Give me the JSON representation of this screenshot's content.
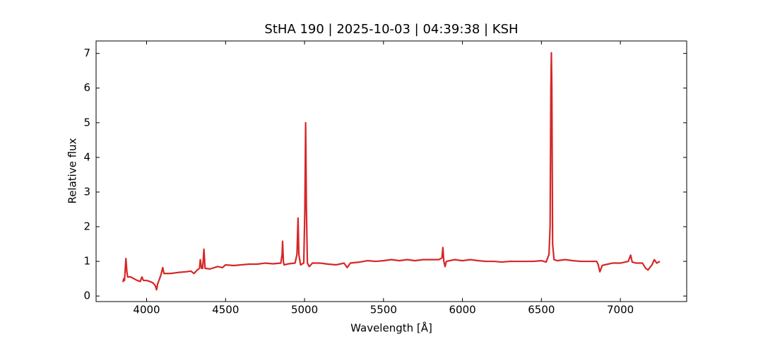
{
  "chart_data": {
    "type": "line",
    "title": "StHA 190 | 2025-10-03 | 04:39:38 | KSH",
    "x_label": "Wavelength [Å]",
    "y_label": "Relative flux",
    "xlim": [
      3680,
      7420
    ],
    "ylim": [
      -0.16,
      7.36
    ],
    "xticks": [
      4000,
      4500,
      5000,
      5500,
      6000,
      6500,
      7000
    ],
    "yticks": [
      0,
      1,
      2,
      3,
      4,
      5,
      6,
      7
    ],
    "grid": false,
    "series": [
      {
        "color": "#d62728",
        "x": [
          3850,
          3855,
          3860,
          3869,
          3875,
          3880,
          3900,
          3920,
          3940,
          3960,
          3970,
          3980,
          4000,
          4020,
          4040,
          4055,
          4063,
          4070,
          4090,
          4102,
          4110,
          4150,
          4200,
          4250,
          4280,
          4300,
          4320,
          4335,
          4340,
          4348,
          4355,
          4363,
          4370,
          4400,
          4450,
          4480,
          4500,
          4550,
          4600,
          4650,
          4700,
          4750,
          4800,
          4850,
          4858,
          4861,
          4866,
          4870,
          4900,
          4940,
          4952,
          4959,
          4964,
          4975,
          4995,
          5002,
          5007,
          5012,
          5018,
          5030,
          5050,
          5100,
          5150,
          5200,
          5250,
          5270,
          5290,
          5350,
          5400,
          5450,
          5500,
          5550,
          5600,
          5650,
          5700,
          5750,
          5800,
          5850,
          5870,
          5876,
          5882,
          5890,
          5898,
          5950,
          6000,
          6050,
          6100,
          6150,
          6200,
          6250,
          6300,
          6350,
          6400,
          6450,
          6500,
          6530,
          6548,
          6555,
          6560,
          6563,
          6566,
          6571,
          6580,
          6600,
          6650,
          6700,
          6750,
          6800,
          6850,
          6860,
          6870,
          6885,
          6900,
          6950,
          7000,
          7050,
          7065,
          7075,
          7100,
          7140,
          7160,
          7175,
          7200,
          7215,
          7230,
          7250
        ],
        "values": [
          0.4,
          0.5,
          0.45,
          1.08,
          0.7,
          0.55,
          0.55,
          0.5,
          0.45,
          0.42,
          0.55,
          0.45,
          0.45,
          0.42,
          0.38,
          0.3,
          0.18,
          0.35,
          0.6,
          0.82,
          0.65,
          0.65,
          0.68,
          0.7,
          0.72,
          0.65,
          0.75,
          0.8,
          1.05,
          0.8,
          0.8,
          1.35,
          0.8,
          0.78,
          0.85,
          0.82,
          0.9,
          0.88,
          0.9,
          0.92,
          0.92,
          0.95,
          0.93,
          0.95,
          1.2,
          1.58,
          1.0,
          0.9,
          0.93,
          0.95,
          1.2,
          2.25,
          1.2,
          0.9,
          0.95,
          2.5,
          5.0,
          2.5,
          0.95,
          0.85,
          0.95,
          0.95,
          0.92,
          0.9,
          0.95,
          0.82,
          0.95,
          0.98,
          1.02,
          1.0,
          1.02,
          1.05,
          1.02,
          1.05,
          1.02,
          1.05,
          1.05,
          1.05,
          1.1,
          1.4,
          1.0,
          0.85,
          1.0,
          1.05,
          1.02,
          1.05,
          1.02,
          1.0,
          1.0,
          0.98,
          1.0,
          1.0,
          1.0,
          1.0,
          1.02,
          0.98,
          1.2,
          2.0,
          6.0,
          7.02,
          6.0,
          1.5,
          1.05,
          1.02,
          1.05,
          1.02,
          1.0,
          1.0,
          1.0,
          0.9,
          0.7,
          0.88,
          0.9,
          0.95,
          0.95,
          1.0,
          1.18,
          0.98,
          0.95,
          0.95,
          0.8,
          0.75,
          0.9,
          1.05,
          0.95,
          1.0
        ]
      }
    ]
  }
}
